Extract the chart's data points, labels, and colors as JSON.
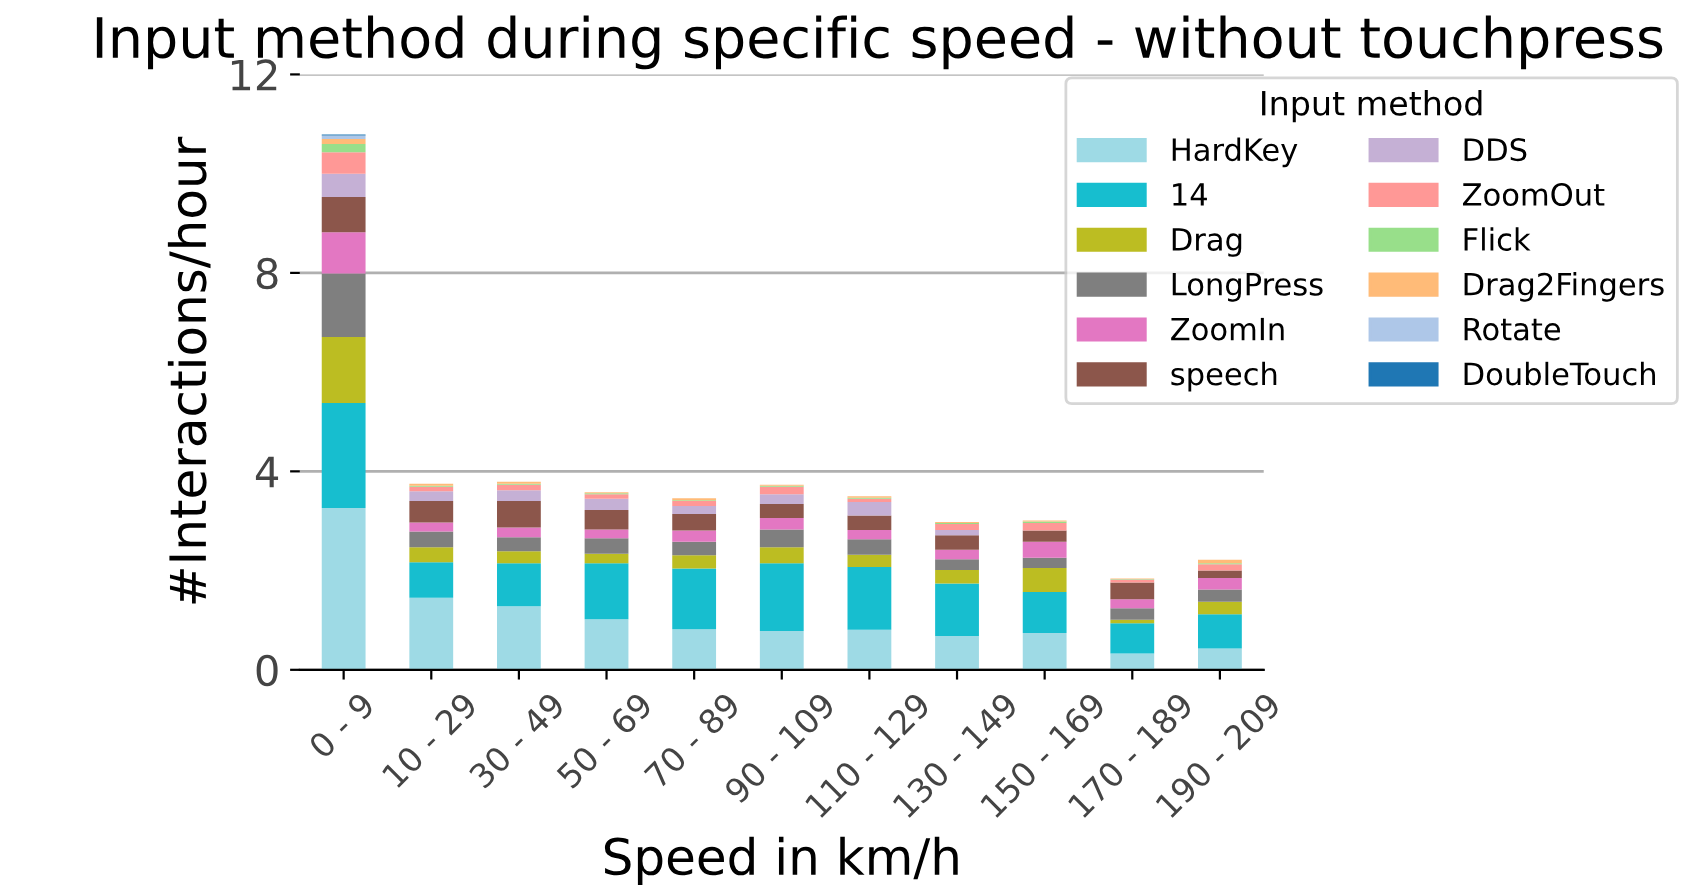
{
  "chart_data": {
    "type": "bar",
    "stacked": true,
    "title": "Input method during specific speed - without touchpress",
    "xlabel": "Speed in km/h",
    "ylabel": "#Interactions/hour",
    "legend_title": "Input method",
    "legend": "top right",
    "grid": "y",
    "categories": [
      "0 - 9",
      "10 - 29",
      "30 - 49",
      "50 - 69",
      "70 - 89",
      "90 - 109",
      "110 - 129",
      "130 - 149",
      "150 - 169",
      "170 - 189",
      "190 - 209"
    ],
    "ylim": [
      0,
      12
    ],
    "yticks": [
      0,
      4,
      8,
      12
    ],
    "series": [
      {
        "name": "HardKey",
        "color": "#9edae5",
        "values": [
          3.26,
          1.45,
          1.28,
          1.02,
          0.82,
          0.78,
          0.81,
          0.68,
          0.74,
          0.33,
          0.43
        ]
      },
      {
        "name": "14",
        "color": "#17becf",
        "values": [
          2.12,
          0.72,
          0.87,
          1.13,
          1.22,
          1.37,
          1.26,
          1.06,
          0.83,
          0.61,
          0.69
        ]
      },
      {
        "name": "Drag",
        "color": "#bcbd22",
        "values": [
          1.33,
          0.3,
          0.24,
          0.19,
          0.27,
          0.32,
          0.25,
          0.27,
          0.48,
          0.07,
          0.25
        ]
      },
      {
        "name": "LongPress",
        "color": "#7f7f7f",
        "values": [
          1.28,
          0.32,
          0.28,
          0.31,
          0.27,
          0.36,
          0.31,
          0.22,
          0.21,
          0.23,
          0.25
        ]
      },
      {
        "name": "ZoomIn",
        "color": "#e377c2",
        "values": [
          0.83,
          0.18,
          0.2,
          0.18,
          0.23,
          0.23,
          0.19,
          0.19,
          0.32,
          0.18,
          0.23
        ]
      },
      {
        "name": "speech",
        "color": "#8c564b",
        "values": [
          0.71,
          0.43,
          0.53,
          0.39,
          0.33,
          0.28,
          0.29,
          0.29,
          0.23,
          0.34,
          0.15
        ]
      },
      {
        "name": "DDS",
        "color": "#c5b0d5",
        "values": [
          0.47,
          0.2,
          0.22,
          0.23,
          0.16,
          0.2,
          0.27,
          0.11,
          null,
          null,
          null
        ]
      },
      {
        "name": "ZoomOut",
        "color": "#ff9896",
        "values": [
          0.43,
          0.09,
          0.11,
          0.09,
          0.1,
          0.15,
          0.07,
          0.12,
          0.15,
          0.06,
          0.13
        ]
      },
      {
        "name": "Flick",
        "color": "#98df8a",
        "values": [
          0.17,
          0.02,
          0.02,
          0.02,
          0.02,
          0.02,
          0.02,
          0.02,
          0.03,
          0.01,
          0.02
        ]
      },
      {
        "name": "Drag2Fingers",
        "color": "#ffbb78",
        "values": [
          0.1,
          0.04,
          0.04,
          0.02,
          0.04,
          0.02,
          0.03,
          0.02,
          0.02,
          0.01,
          0.07
        ]
      },
      {
        "name": "Rotate",
        "color": "#aec7e8",
        "values": [
          0.07,
          0,
          0,
          0,
          0,
          0,
          0,
          0,
          0,
          0,
          0
        ]
      },
      {
        "name": "DoubleTouch",
        "color": "#1f77b4",
        "values": [
          0.02,
          0,
          0,
          0,
          0,
          0,
          0,
          0,
          0,
          0,
          0
        ]
      }
    ]
  }
}
